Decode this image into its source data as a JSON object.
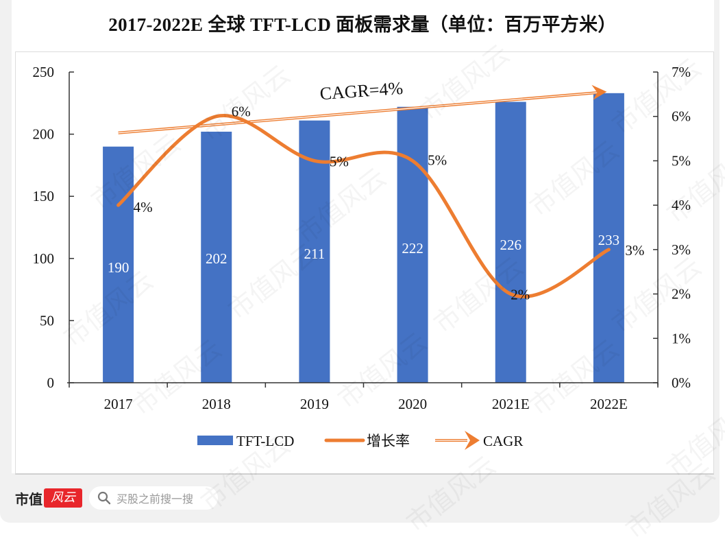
{
  "title": "2017-2022E 全球 TFT-LCD 面板需求量（单位：百万平方米）",
  "footer": {
    "brand": "市值",
    "brand_logo": "风云",
    "search_placeholder": "买股之前搜一搜"
  },
  "watermark": "市值风云",
  "colors": {
    "bar": "#4472c4",
    "line": "#ed7d31",
    "axis": "#333333"
  },
  "chart_data": {
    "type": "bar",
    "title": "2017-2022E 全球 TFT-LCD 面板需求量（单位：百万平方米）",
    "categories": [
      "2017",
      "2018",
      "2019",
      "2020",
      "2021E",
      "2022E"
    ],
    "series": [
      {
        "name": "TFT-LCD",
        "type": "bar",
        "axis": "left",
        "values": [
          190,
          202,
          211,
          222,
          226,
          233
        ],
        "labels": [
          "190",
          "202",
          "211",
          "222",
          "226",
          "233"
        ]
      },
      {
        "name": "增长率",
        "type": "line",
        "axis": "right",
        "smooth": true,
        "values": [
          0.04,
          0.06,
          0.05,
          0.05,
          0.02,
          0.03
        ],
        "labels": [
          "4%",
          "6%",
          "5%",
          "5%",
          "2%",
          "3%"
        ]
      },
      {
        "name": "CAGR",
        "type": "arrow",
        "axis": "left",
        "start": 190,
        "end": 233
      }
    ],
    "annotation": "CAGR=4%",
    "y_left": {
      "min": 0,
      "max": 250,
      "ticks": [
        "0",
        "50",
        "100",
        "150",
        "200",
        "250"
      ]
    },
    "y_right": {
      "min": 0,
      "max": 0.07,
      "ticks": [
        "0%",
        "1%",
        "2%",
        "3%",
        "4%",
        "5%",
        "6%",
        "7%"
      ]
    },
    "legend": {
      "position": "bottom",
      "entries": [
        "TFT-LCD",
        "增长率",
        "CAGR"
      ]
    },
    "grid": false,
    "xlabel": "",
    "ylabel": ""
  }
}
